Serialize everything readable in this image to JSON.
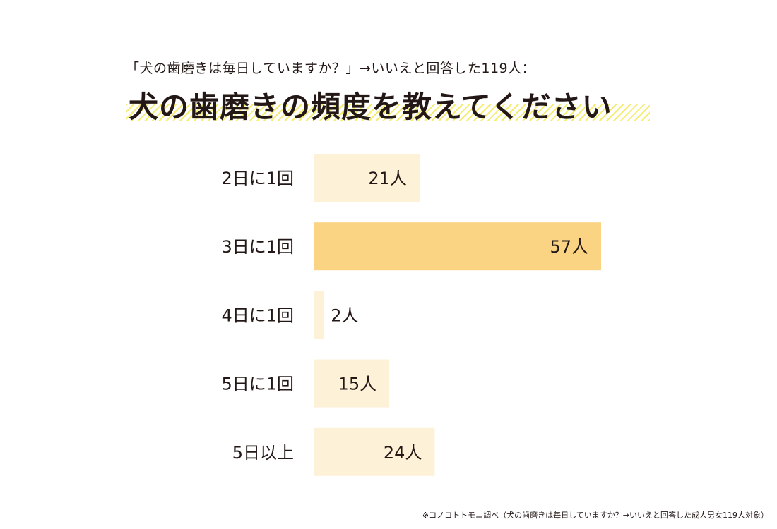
{
  "header": {
    "subtitle": "「犬の歯磨きは毎日していますか？」→いいえと回答した119人：",
    "title": "犬の歯磨きの頻度を教えてください"
  },
  "footnote": "※コノコトトモニ調べ（犬の歯磨きは毎日していますか？→いいえと回答した成人男女119人対象）",
  "colors": {
    "bar_default": "#fdf1d8",
    "bar_highlight": "#fad482",
    "text": "#231815",
    "stripe": "#f5ec72"
  },
  "chart_data": {
    "type": "bar",
    "orientation": "horizontal",
    "categories": [
      "2日に1回",
      "3日に1回",
      "4日に1回",
      "5日に1回",
      "5日以上"
    ],
    "values": [
      21,
      57,
      2,
      15,
      24
    ],
    "value_labels": [
      "21人",
      "57人",
      "2人",
      "15人",
      "24人"
    ],
    "unit": "人",
    "highlight_index": 1,
    "xlim": [
      0,
      57
    ],
    "grid": false,
    "legend": "none"
  }
}
